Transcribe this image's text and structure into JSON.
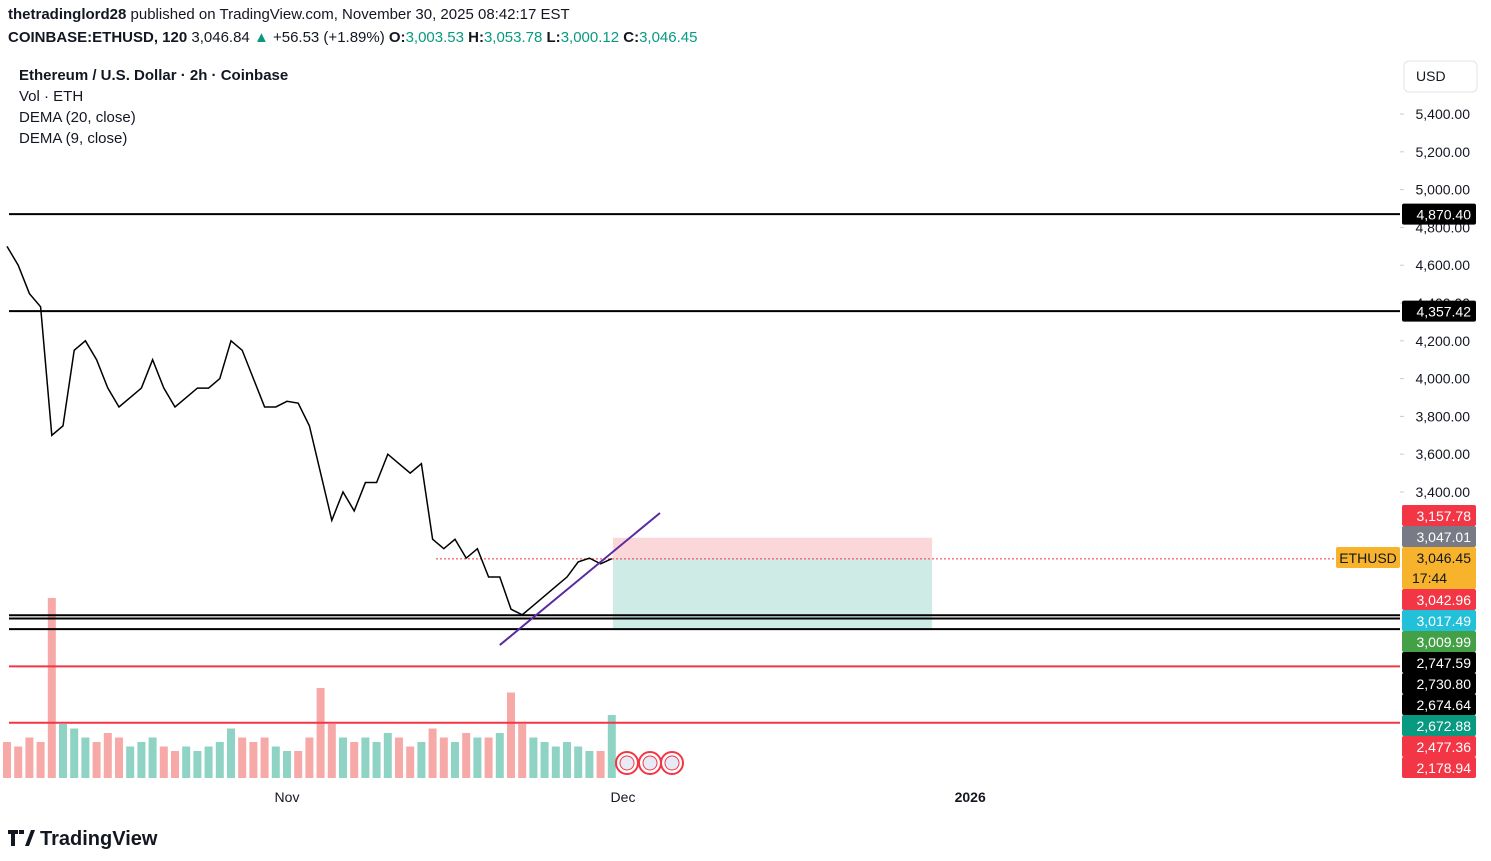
{
  "header": {
    "author": "thetradinglord28",
    "published": "published on TradingView.com, November 30, 2025 08:42:17 EST"
  },
  "symbol": {
    "name": "COINBASE:ETHUSD, 120",
    "last": "3,046.84",
    "change": "+56.53 (+1.89%)",
    "ohlc": [
      {
        "label": "O:",
        "value": "3,003.53"
      },
      {
        "label": "H:",
        "value": "3,053.78"
      },
      {
        "label": "L:",
        "value": "3,000.12"
      },
      {
        "label": "C:",
        "value": "3,046.45"
      }
    ]
  },
  "legend": [
    "Ethereum / U.S. Dollar · 2h · Coinbase",
    "Vol · ETH",
    "DEMA (20, close)",
    "DEMA (9, close)"
  ],
  "currency": "USD",
  "countdown": "17:44",
  "brand": "TradingView",
  "chart_data": {
    "type": "line",
    "categories": [
      null,
      null,
      null,
      null,
      null,
      null,
      null,
      null,
      null,
      null,
      null,
      null,
      null,
      null,
      null,
      null,
      null,
      null,
      null,
      null,
      null,
      null,
      null,
      null,
      null,
      "Nov",
      null,
      null,
      null,
      null,
      null,
      null,
      null,
      null,
      null,
      null,
      null,
      null,
      null,
      null,
      null,
      null,
      null,
      null,
      null,
      null,
      null,
      null,
      null,
      null,
      null,
      null,
      null,
      null,
      null,
      "Dec",
      null,
      null,
      null,
      null,
      null,
      null,
      null,
      null,
      null,
      null,
      null,
      null,
      null,
      null,
      null,
      null,
      null,
      null,
      null,
      null,
      null,
      null,
      null,
      null,
      null,
      null,
      null,
      null,
      null,
      null,
      "2026"
    ],
    "series": [
      {
        "name": "ETHUSD",
        "color": "#000000",
        "values": [
          4700,
          4600,
          4450,
          4380,
          3700,
          3750,
          4150,
          4200,
          4100,
          3950,
          3850,
          3900,
          3950,
          4100,
          3950,
          3850,
          3900,
          3950,
          3950,
          4000,
          4200,
          4150,
          4000,
          3850,
          3850,
          3880,
          3870,
          3750,
          3500,
          3250,
          3400,
          3300,
          3450,
          3450,
          3600,
          3550,
          3500,
          3550,
          3150,
          3100,
          3150,
          3050,
          3100,
          2950,
          2950,
          2780,
          2750,
          2800,
          2850,
          2900,
          2950,
          3030,
          3050,
          3020,
          3046.84,
          null,
          null,
          null,
          null,
          null,
          null,
          null,
          null,
          null,
          null,
          null,
          null,
          null,
          null,
          null,
          null,
          null,
          null,
          null,
          null,
          null,
          null,
          null,
          null,
          null,
          null,
          null,
          null,
          null,
          null,
          null,
          null
        ]
      },
      {
        "name": "Vol · ETH",
        "type": "bar",
        "axis": "y2",
        "colors": [
          "#f7a9a7",
          "#8fd3c5"
        ],
        "values": [
          40,
          35,
          45,
          40,
          200,
          60,
          55,
          45,
          40,
          50,
          45,
          35,
          40,
          45,
          35,
          30,
          35,
          30,
          35,
          40,
          55,
          45,
          40,
          45,
          35,
          30,
          30,
          45,
          100,
          60,
          45,
          40,
          45,
          40,
          50,
          45,
          35,
          40,
          55,
          45,
          40,
          50,
          45,
          45,
          50,
          95,
          60,
          45,
          40,
          35,
          40,
          35,
          30,
          30,
          70,
          null,
          null,
          null,
          null,
          null,
          null,
          null,
          null,
          null,
          null,
          null,
          null,
          null,
          null,
          null,
          null,
          null,
          null,
          null,
          null,
          null,
          null,
          null,
          null,
          null,
          null,
          null,
          null,
          null,
          null,
          null,
          null
        ]
      }
    ],
    "ylim": [
      1876,
      5686
    ],
    "y2lim": [
      0,
      200
    ],
    "yticks": [
      {
        "value": 5400,
        "label": "5,400.00"
      },
      {
        "value": 5200,
        "label": "5,200.00"
      },
      {
        "value": 5000,
        "label": "5,000.00"
      },
      {
        "value": 4800,
        "label": "4,800.00"
      },
      {
        "value": 4600,
        "label": "4,600.00"
      },
      {
        "value": 4400,
        "label": "4,400.00"
      },
      {
        "value": 4200,
        "label": "4,200.00"
      },
      {
        "value": 4000,
        "label": "4,000.00"
      },
      {
        "value": 3800,
        "label": "3,800.00"
      },
      {
        "value": 3600,
        "label": "3,600.00"
      },
      {
        "value": 3400,
        "label": "3,400.00"
      }
    ],
    "price_labels": [
      {
        "value": 4870.4,
        "label": "4,870.40",
        "color": "#000000",
        "line": true
      },
      {
        "value": 4357.42,
        "label": "4,357.42",
        "color": "#000000",
        "line": true
      },
      {
        "value": 3157.78,
        "label": "3,157.78",
        "color": "#f23645"
      },
      {
        "value": 3047.01,
        "label": "3,047.01",
        "color": "#787b86"
      },
      {
        "value": 3046.45,
        "label": "3,046.45",
        "color": "#f7b32b"
      },
      {
        "value": 3042.96,
        "label": "3,042.96",
        "color": "#f23645"
      },
      {
        "value": 3017.49,
        "label": "3,017.49",
        "color": "#22c1d9"
      },
      {
        "value": 3009.99,
        "label": "3,009.99",
        "color": "#43a047"
      },
      {
        "value": 2747.59,
        "label": "2,747.59",
        "color": "#000000",
        "line": true
      },
      {
        "value": 2730.8,
        "label": "2,730.80",
        "color": "#000000",
        "line": true
      },
      {
        "value": 2674.64,
        "label": "2,674.64",
        "color": "#000000",
        "line": true
      },
      {
        "value": 2672.88,
        "label": "2,672.88",
        "color": "#089981"
      },
      {
        "value": 2477.36,
        "label": "2,477.36",
        "color": "#f23645",
        "line": true
      },
      {
        "value": 2178.94,
        "label": "2,178.94",
        "color": "#f23645",
        "line": true
      }
    ],
    "trendline": {
      "x": [
        44,
        58.3
      ],
      "y": [
        2590,
        3289
      ],
      "color": "#5b2a9e"
    },
    "position": {
      "x": [
        54.1,
        82.6
      ],
      "entry": 3046.45,
      "stop": 3157.78,
      "target": 2672.88
    }
  }
}
